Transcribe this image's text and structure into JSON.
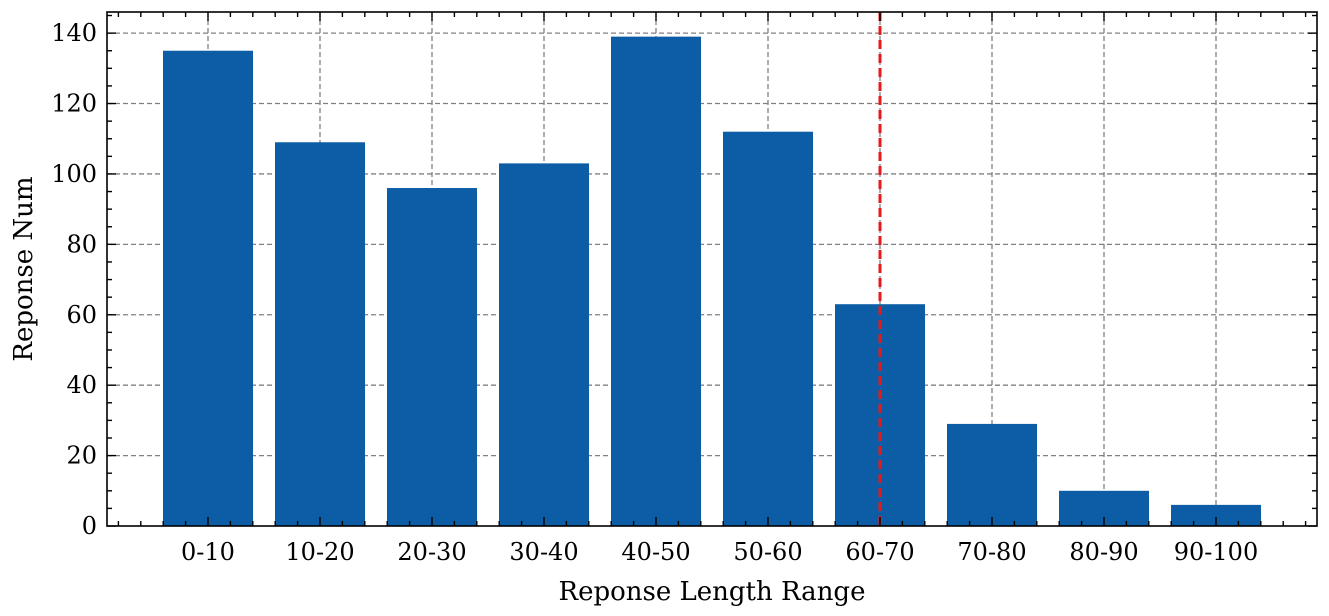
{
  "chart_data": {
    "type": "bar",
    "categories": [
      "0-10",
      "10-20",
      "20-30",
      "30-40",
      "40-50",
      "50-60",
      "60-70",
      "70-80",
      "80-90",
      "90-100"
    ],
    "values": [
      135,
      109,
      96,
      103,
      139,
      112,
      63,
      29,
      10,
      6
    ],
    "title": "",
    "xlabel": "Reponse Length Range",
    "ylabel": "Reponse Num",
    "ylim": [
      0,
      146
    ],
    "yticks": [
      0,
      20,
      40,
      60,
      80,
      100,
      120,
      140
    ],
    "grid": true,
    "bar_color": "#0C5DA5",
    "reference_line": {
      "orientation": "vertical",
      "x_category": "60-70",
      "color": "#e41a1c",
      "style": "dashed"
    }
  }
}
